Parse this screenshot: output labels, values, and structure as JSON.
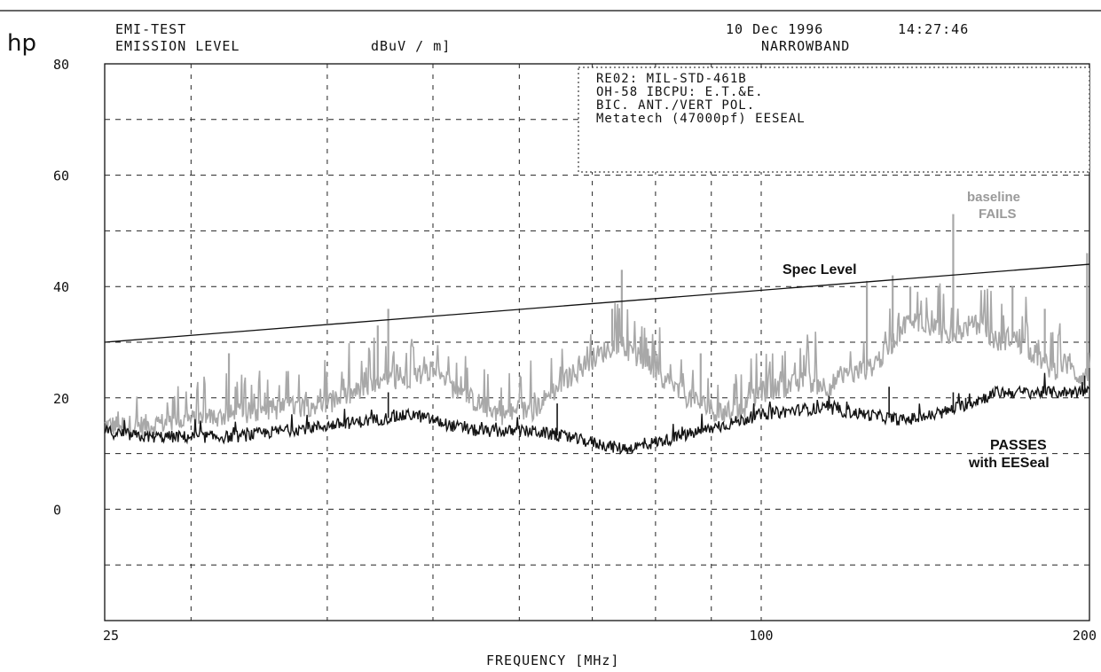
{
  "header": {
    "brand": "hp",
    "test_name": "EMI-TEST",
    "emission_label": "EMISSION LEVEL",
    "unit_label": "dBuV / m]",
    "date": "10 Dec 1996",
    "time": "14:27:46",
    "mode": "NARROWBAND"
  },
  "annotation_box": [
    "RE02: MIL-STD-461B",
    "OH-58 IBCPU: E.T.&E.",
    "BIC. ANT./VERT POL.",
    "Metatech (47000pf) EESEAL"
  ],
  "notes": {
    "spec": "Spec Level",
    "baseline_line1": "baseline",
    "baseline_line2": "FAILS",
    "passes_line1": "PASSES",
    "passes_line2": "with EESeal"
  },
  "colors": {
    "baseline": "#a8a8a8",
    "eeseal": "#141414",
    "spec": "#111111",
    "grid": "#222222"
  },
  "chart_data": {
    "type": "line",
    "title": "EMISSION LEVEL",
    "xlabel": "FREQUENCY [MHz]",
    "ylabel": "dBuV / m]",
    "x_scale": "log",
    "xlim": [
      25,
      200
    ],
    "ylim": [
      -20,
      80
    ],
    "x_tick_labels": [
      "25",
      "100",
      "200"
    ],
    "y_tick_labels": [
      "80",
      "60",
      "40",
      "20",
      "0"
    ],
    "y_ticks": [
      80,
      60,
      40,
      20,
      0
    ],
    "grid": true,
    "series": [
      {
        "name": "Spec Level",
        "x": [
          25,
          200
        ],
        "y": [
          30,
          44
        ]
      },
      {
        "name": "baseline",
        "x": [
          25,
          27,
          30,
          33,
          36,
          40,
          44,
          48,
          50,
          52,
          55,
          58,
          62,
          66,
          70,
          74,
          76,
          80,
          84,
          88,
          92,
          96,
          100,
          105,
          110,
          115,
          120,
          125,
          130,
          135,
          140,
          145,
          150,
          155,
          160,
          165,
          170,
          175,
          180,
          185,
          190,
          195,
          200
        ],
        "y": [
          15,
          15,
          16,
          17,
          18,
          19,
          22,
          24,
          25,
          22,
          19,
          17,
          18,
          23,
          27,
          30,
          28,
          25,
          21,
          19,
          17,
          18,
          21,
          22,
          23,
          22,
          24,
          25,
          28,
          33,
          34,
          32,
          31,
          33,
          32,
          30,
          31,
          29,
          27,
          25,
          26,
          24,
          24
        ]
      },
      {
        "name": "EESeal",
        "x": [
          25,
          27,
          30,
          33,
          36,
          40,
          44,
          48,
          50,
          52,
          55,
          58,
          62,
          66,
          70,
          74,
          76,
          80,
          84,
          88,
          92,
          96,
          100,
          105,
          110,
          115,
          120,
          125,
          130,
          135,
          140,
          145,
          150,
          155,
          160,
          165,
          170,
          175,
          180,
          185,
          190,
          195,
          200
        ],
        "y": [
          14,
          13,
          13,
          13,
          14,
          15,
          16,
          17,
          16,
          15,
          14,
          14,
          14,
          13,
          12,
          11,
          11,
          12,
          13,
          14,
          15,
          16,
          17,
          17.5,
          18,
          18,
          17.5,
          17,
          16.5,
          16,
          16.5,
          17,
          18,
          19,
          20,
          21,
          21,
          21,
          21,
          21,
          21,
          21,
          21
        ]
      }
    ],
    "spikes": {
      "baseline": [
        {
          "x": 32.5,
          "y": 28
        },
        {
          "x": 45.5,
          "y": 36
        },
        {
          "x": 44.5,
          "y": 33
        },
        {
          "x": 73,
          "y": 36
        },
        {
          "x": 74.5,
          "y": 43
        },
        {
          "x": 77.5,
          "y": 31
        },
        {
          "x": 88,
          "y": 28
        },
        {
          "x": 125,
          "y": 41
        },
        {
          "x": 132,
          "y": 42
        },
        {
          "x": 137,
          "y": 40
        },
        {
          "x": 150,
          "y": 53
        },
        {
          "x": 170,
          "y": 40
        },
        {
          "x": 182,
          "y": 36
        },
        {
          "x": 199,
          "y": 46
        }
      ],
      "eeseal": [
        {
          "x": 45.5,
          "y": 21
        },
        {
          "x": 65,
          "y": 19
        },
        {
          "x": 131,
          "y": 22
        },
        {
          "x": 150,
          "y": 21
        },
        {
          "x": 154,
          "y": 20
        },
        {
          "x": 198,
          "y": 24
        }
      ]
    }
  }
}
